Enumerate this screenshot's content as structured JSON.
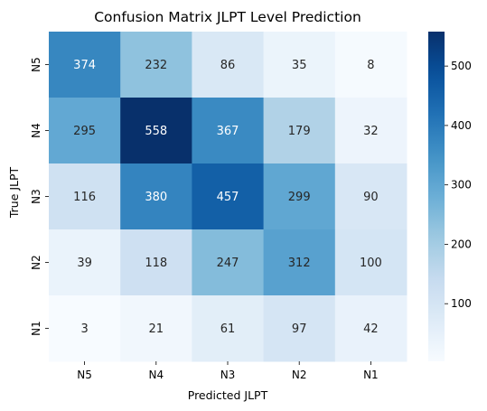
{
  "chart_data": {
    "type": "heatmap",
    "title": "Confusion Matrix JLPT Level Prediction",
    "xlabel": "Predicted JLPT",
    "ylabel": "True JLPT",
    "x_categories": [
      "N5",
      "N4",
      "N3",
      "N2",
      "N1"
    ],
    "y_categories": [
      "N5",
      "N4",
      "N3",
      "N2",
      "N1"
    ],
    "values": [
      [
        374,
        232,
        86,
        35,
        8
      ],
      [
        295,
        558,
        367,
        179,
        32
      ],
      [
        116,
        380,
        457,
        299,
        90
      ],
      [
        39,
        118,
        247,
        312,
        100
      ],
      [
        3,
        21,
        61,
        97,
        42
      ]
    ],
    "colormap": "Blues",
    "colorbar": {
      "range": [
        3,
        558
      ],
      "ticks": [
        100,
        200,
        300,
        400,
        500
      ],
      "tick_labels": [
        "100",
        "200",
        "300",
        "400",
        "500"
      ]
    },
    "grid": false,
    "legend": "colorbar-right"
  }
}
